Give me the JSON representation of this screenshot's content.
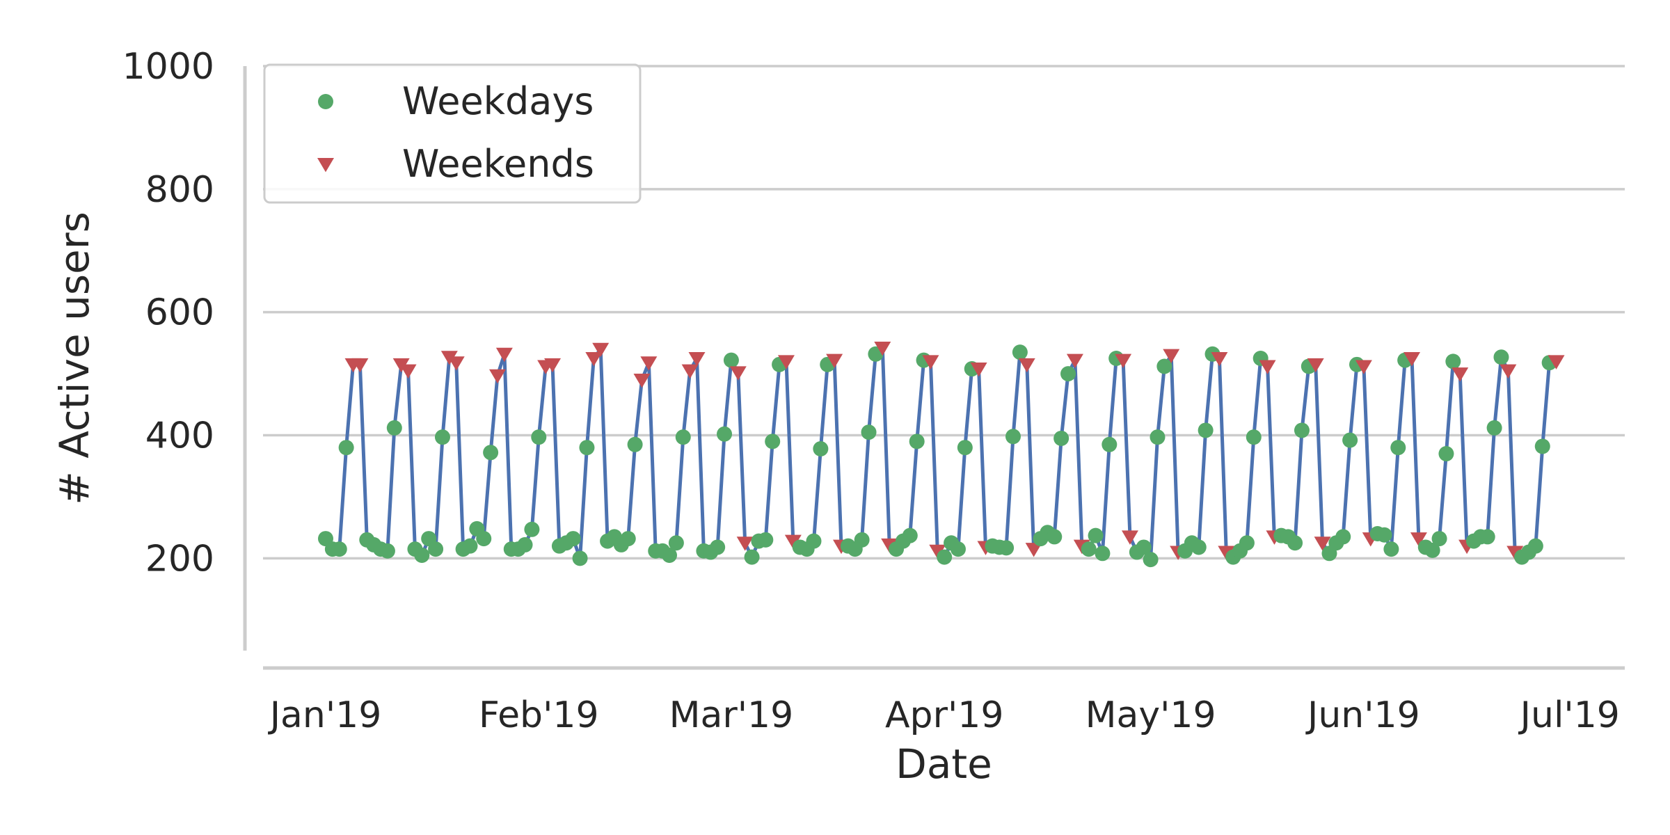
{
  "chart_data": {
    "type": "line",
    "title": "",
    "xlabel": "Date",
    "ylabel": "# Active users",
    "ylim": [
      50,
      1000
    ],
    "yticks": [
      200,
      400,
      600,
      800,
      1000
    ],
    "ytick_labels": [
      "200",
      "400",
      "600",
      "800",
      "1000"
    ],
    "x_start_date": "2019-01-01",
    "x_end_date": "2019-07-01",
    "xtick_labels": [
      {
        "day": 0,
        "label": "Jan'19"
      },
      {
        "day": 31,
        "label": "Feb'19"
      },
      {
        "day": 59,
        "label": "Mar'19"
      },
      {
        "day": 90,
        "label": "Apr'19"
      },
      {
        "day": 120,
        "label": "May'19"
      },
      {
        "day": 151,
        "label": "Jun'19"
      },
      {
        "day": 181,
        "label": "Jul'19"
      }
    ],
    "legend_position": "top-left",
    "colors": {
      "line": "#4c72b0",
      "weekdays": "#55a868",
      "weekends": "#c44e52"
    },
    "series": [
      {
        "name": "Weekdays",
        "marker": "circle",
        "role": "weekday"
      },
      {
        "name": "Weekends",
        "marker": "triangle-down",
        "role": "weekend"
      }
    ],
    "values": [
      232,
      215,
      215,
      380,
      515,
      515,
      230,
      222,
      215,
      212,
      412,
      515,
      505,
      215,
      205,
      232,
      215,
      397,
      527,
      518,
      215,
      220,
      248,
      232,
      372,
      497,
      532,
      215,
      215,
      222,
      247,
      397,
      512,
      515,
      220,
      225,
      232,
      200,
      380,
      525,
      540,
      228,
      235,
      222,
      232,
      385,
      490,
      518,
      212,
      212,
      205,
      225,
      397,
      505,
      525,
      212,
      210,
      218,
      402,
      522,
      502,
      225,
      202,
      228,
      230,
      390,
      515,
      520,
      228,
      218,
      215,
      228,
      378,
      515,
      522,
      220,
      220,
      215,
      230,
      405,
      532,
      542,
      222,
      215,
      228,
      237,
      390,
      522,
      520,
      212,
      202,
      225,
      215,
      380,
      508,
      508,
      218,
      220,
      218,
      217,
      398,
      535,
      515,
      215,
      232,
      242,
      235,
      395,
      500,
      522,
      220,
      215,
      237,
      208,
      385,
      525,
      522,
      235,
      210,
      218,
      198,
      397,
      512,
      530,
      210,
      212,
      225,
      218,
      408,
      532,
      525,
      210,
      202,
      212,
      225,
      397,
      525,
      512,
      235,
      237,
      235,
      225,
      408,
      512,
      515,
      225,
      208,
      225,
      235,
      392,
      515,
      512,
      232,
      240,
      238,
      215,
      380,
      522,
      525,
      232,
      218,
      213,
      232,
      370,
      520,
      500,
      220,
      228,
      235,
      235,
      412,
      527,
      505,
      210,
      202,
      210,
      220,
      382,
      518,
      520
    ]
  }
}
